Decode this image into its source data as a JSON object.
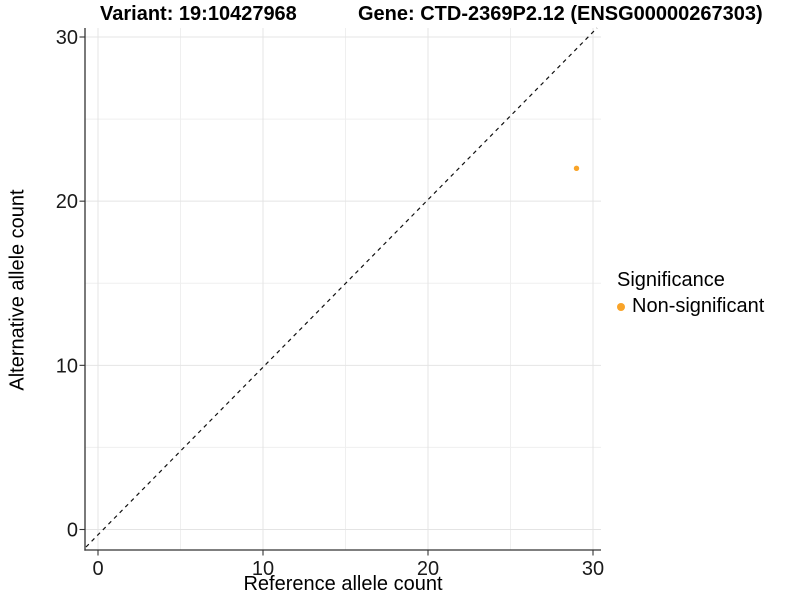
{
  "header": {
    "title_left": "Variant: 19:10427968",
    "title_right": "Gene: CTD-2369P2.12 (ENSG00000267303)"
  },
  "chart_data": {
    "type": "scatter",
    "title": "Variant: 19:10427968 / Gene: CTD-2369P2.12 (ENSG00000267303)",
    "xlabel": "Reference allele count",
    "ylabel": "Alternative allele count",
    "xlim": [
      0,
      30
    ],
    "ylim": [
      0,
      30
    ],
    "xticks": [
      0,
      10,
      20,
      30
    ],
    "yticks": [
      0,
      10,
      20,
      30
    ],
    "minor_gridlines": [
      5,
      15,
      25
    ],
    "grid": "on",
    "aspect": "equal",
    "identity_line": {
      "slope": 1,
      "intercept": 0,
      "style": "dashed",
      "color": "#111111"
    },
    "series": [
      {
        "name": "Non-significant",
        "color": "#F9A429",
        "points": [
          {
            "x": 29,
            "y": 22
          }
        ]
      }
    ],
    "legend": {
      "title": "Significance",
      "position": "right",
      "items": [
        {
          "label": "Non-significant",
          "color": "#F9A429"
        }
      ]
    }
  },
  "colors": {
    "background": "#FFFFFF",
    "axis_line": "#333333",
    "tick_text": "#1a1a1a",
    "grid_major": "#E4E4E4",
    "grid_minor": "#EFEFEF",
    "point": "#F9A429",
    "identity_line": "#111111"
  }
}
